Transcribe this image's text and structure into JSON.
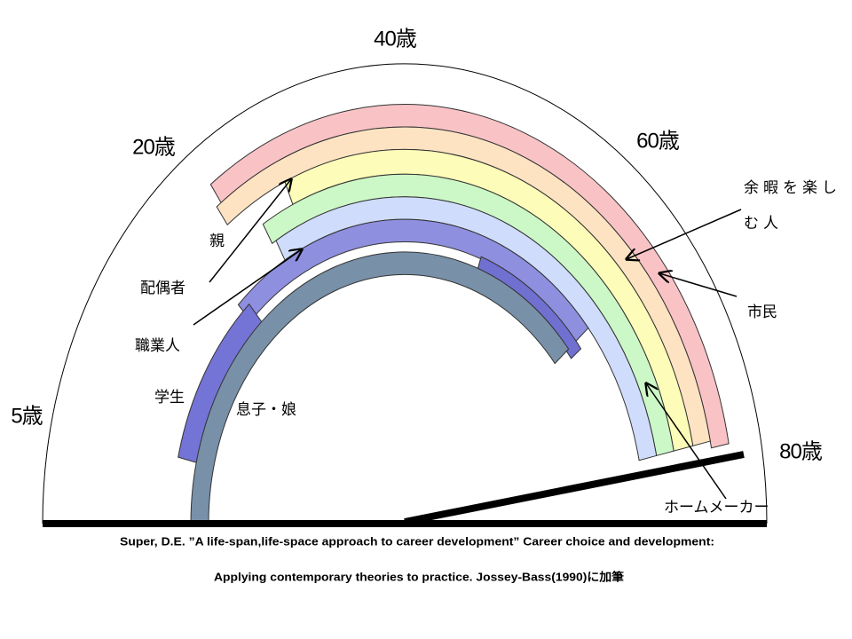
{
  "ages": {
    "a40": "40歳",
    "a20": "20歳",
    "a60": "60歳",
    "a5": "5歳",
    "a80": "80歳"
  },
  "roles": {
    "leisure_1": "余暇を楽し",
    "leisure_2": "む人",
    "citizen": "市民",
    "parent": "親",
    "spouse": "配偶者",
    "worker": "職業人",
    "student": "学生",
    "child": "息子・娘",
    "homemaker": "ホームメーカー"
  },
  "caption": {
    "line1": "Super, D.E.  ”A life-span,life-space approach to career development” Career choice and development:",
    "line2": "Applying contemporary theories to practice. Jossey-Bass(1990)に加筆"
  }
}
